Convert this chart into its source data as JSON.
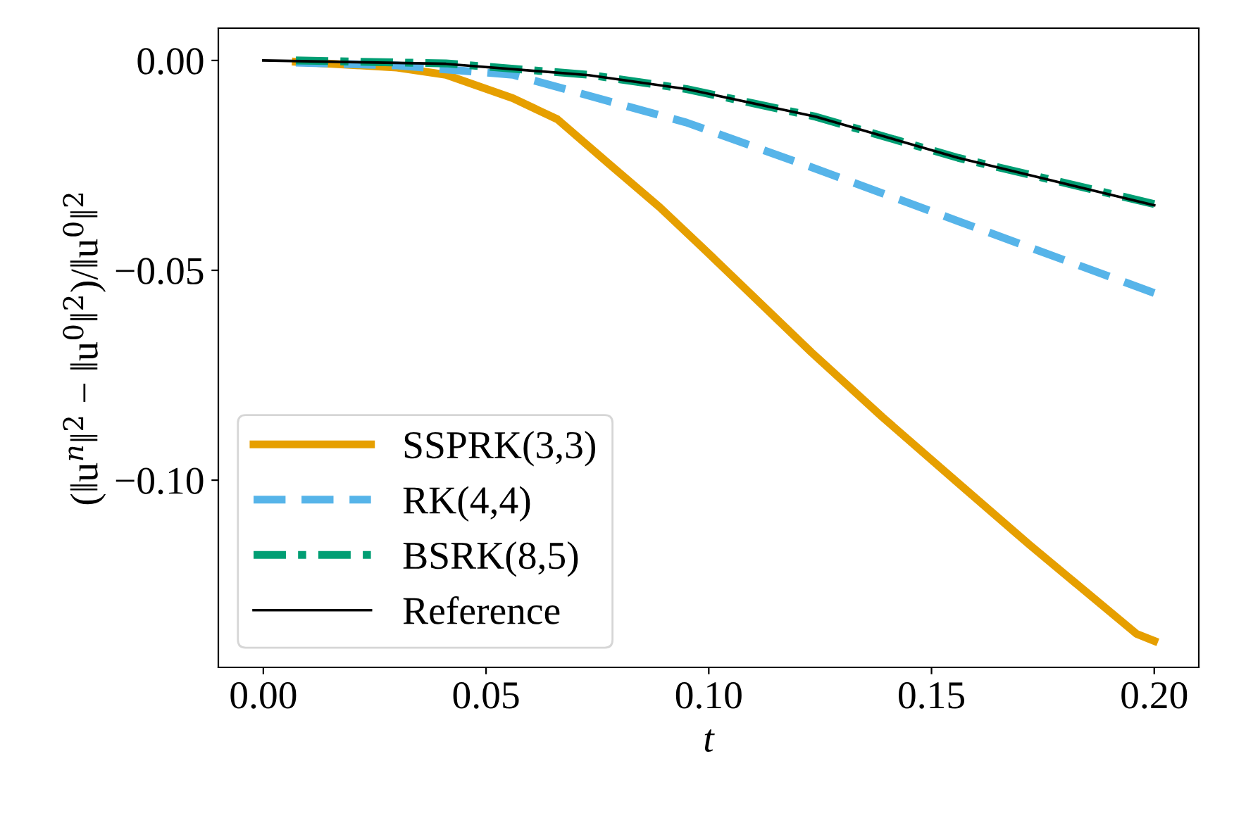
{
  "chart_data": {
    "type": "line",
    "xlabel": "t",
    "ylabel": "(‖u$^{n}$‖$^{2}$ − ‖u$^{0}$‖$^{2}$)/‖u$^{0}$‖$^{2}$",
    "xlim": [
      -0.0101,
      0.21
    ],
    "ylim": [
      -0.1446,
      0.0077
    ],
    "xticks": [
      {
        "value": 0,
        "label": "0.00"
      },
      {
        "value": 0.05,
        "label": "0.05"
      },
      {
        "value": 0.1,
        "label": "0.10"
      },
      {
        "value": 0.15,
        "label": "0.15"
      },
      {
        "value": 0.2,
        "label": "0.20"
      }
    ],
    "yticks": [
      {
        "value": 0,
        "label": "0.00"
      },
      {
        "value": -0.05,
        "label": "−0.05"
      },
      {
        "value": -0.1,
        "label": "−0.10"
      }
    ],
    "grid": false,
    "legend": "bottom left",
    "marker": "none",
    "series": [
      {
        "name": "SSPRK(3,3)",
        "color": "#e69f00",
        "line_style": "solid",
        "x": [
          0.0073,
          0.03,
          0.041,
          0.056,
          0.066,
          0.078,
          0.089,
          0.099,
          0.123,
          0.139,
          0.156,
          0.172,
          0.196,
          0.2
        ],
        "values": [
          -0.0003,
          -0.0017,
          -0.0034,
          -0.009,
          -0.014,
          -0.025,
          -0.035,
          -0.045,
          -0.0695,
          -0.085,
          -0.1007,
          -0.1154,
          -0.1366,
          -0.1383
        ]
      },
      {
        "name": "RK(4,4)",
        "color": "#56b4e9",
        "line_style": "dashed",
        "x": [
          0.0073,
          0.03,
          0.056,
          0.095,
          0.124,
          0.156,
          0.2
        ],
        "values": [
          -0.0005,
          -0.0012,
          -0.0034,
          -0.0148,
          -0.0258,
          -0.0383,
          -0.0554
        ]
      },
      {
        "name": "BSRK(8,5)",
        "color": "#009e73",
        "line_style": "dashdot",
        "x": [
          0.0073,
          0.041,
          0.073,
          0.095,
          0.124,
          0.156,
          0.2
        ],
        "values": [
          0.0,
          -0.0007,
          -0.0034,
          -0.0068,
          -0.0134,
          -0.0232,
          -0.0342
        ]
      },
      {
        "name": "Reference",
        "color": "#000000",
        "line_style": "solid",
        "x": [
          0.0,
          0.041,
          0.073,
          0.095,
          0.124,
          0.156,
          0.2
        ],
        "values": [
          0.0,
          -0.0008,
          -0.0035,
          -0.0068,
          -0.0134,
          -0.0232,
          -0.0345
        ]
      }
    ]
  }
}
